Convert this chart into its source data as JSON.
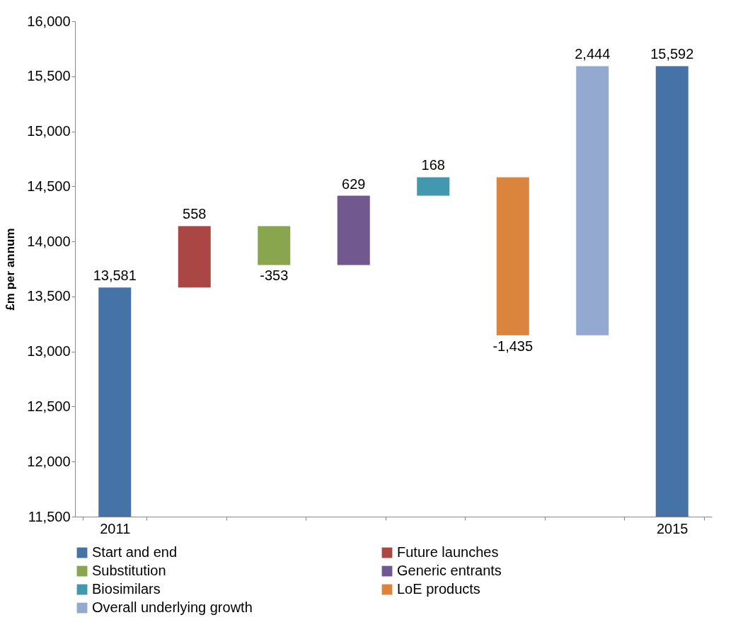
{
  "chart_data": {
    "type": "bar",
    "ylabel": "£m per annum",
    "categories": [
      "2011",
      null,
      null,
      null,
      null,
      null,
      null,
      "2015"
    ],
    "series": [
      {
        "name": "Start and end",
        "color": "#4572a7",
        "values": [
          13581,
          null,
          null,
          null,
          null,
          null,
          null,
          15592
        ],
        "base": [
          null,
          null,
          null,
          null,
          null,
          null,
          null,
          null
        ],
        "value_labels": [
          "13,581",
          null,
          null,
          null,
          null,
          null,
          null,
          "15,592"
        ]
      },
      {
        "name": "Future launches",
        "color": "#aa4643",
        "values": [
          null,
          558,
          null,
          null,
          null,
          null,
          null,
          null
        ],
        "base": [
          null,
          13581,
          null,
          null,
          null,
          null,
          null,
          null
        ],
        "value_labels": [
          null,
          "558",
          null,
          null,
          null,
          null,
          null,
          null
        ]
      },
      {
        "name": "Substitution",
        "color": "#89a54e",
        "values": [
          null,
          null,
          -353,
          null,
          null,
          null,
          null,
          null
        ],
        "base": [
          null,
          null,
          14139,
          null,
          null,
          null,
          null,
          null
        ],
        "value_labels": [
          null,
          null,
          "-353",
          null,
          null,
          null,
          null,
          null
        ]
      },
      {
        "name": "Generic entrants",
        "color": "#71588f",
        "values": [
          null,
          null,
          null,
          629,
          null,
          null,
          null,
          null
        ],
        "base": [
          null,
          null,
          null,
          13786,
          null,
          null,
          null,
          null
        ],
        "value_labels": [
          null,
          null,
          null,
          "629",
          null,
          null,
          null,
          null
        ]
      },
      {
        "name": "Biosimilars",
        "color": "#4198af",
        "values": [
          null,
          null,
          null,
          null,
          168,
          null,
          null,
          null
        ],
        "base": [
          null,
          null,
          null,
          null,
          14415,
          null,
          null,
          null
        ],
        "value_labels": [
          null,
          null,
          null,
          null,
          "168",
          null,
          null,
          null
        ]
      },
      {
        "name": "LoE products",
        "color": "#db843d",
        "values": [
          null,
          null,
          null,
          null,
          null,
          -1435,
          null,
          null
        ],
        "base": [
          null,
          null,
          null,
          null,
          null,
          14583,
          null,
          null
        ],
        "value_labels": [
          null,
          null,
          null,
          null,
          null,
          "-1,435",
          null,
          null
        ]
      },
      {
        "name": "Overall underlying growth",
        "color": "#93a9cf",
        "values": [
          null,
          null,
          null,
          null,
          null,
          null,
          2444,
          null
        ],
        "base": [
          null,
          null,
          null,
          null,
          null,
          null,
          13148,
          null
        ],
        "value_labels": [
          null,
          null,
          null,
          null,
          null,
          null,
          "2,444",
          null
        ]
      }
    ],
    "ylim": [
      11500,
      16000
    ],
    "yticks": [
      {
        "value": 11500,
        "label": "11,500"
      },
      {
        "value": 12000,
        "label": "12,000"
      },
      {
        "value": 12500,
        "label": "12,500"
      },
      {
        "value": 13000,
        "label": "13,000"
      },
      {
        "value": 13500,
        "label": "13,500"
      },
      {
        "value": 14000,
        "label": "14,000"
      },
      {
        "value": 14500,
        "label": "14,500"
      },
      {
        "value": 15000,
        "label": "15,000"
      },
      {
        "value": 15500,
        "label": "15,500"
      },
      {
        "value": 16000,
        "label": "16,000"
      }
    ],
    "grid": false,
    "legend": "bottom"
  }
}
